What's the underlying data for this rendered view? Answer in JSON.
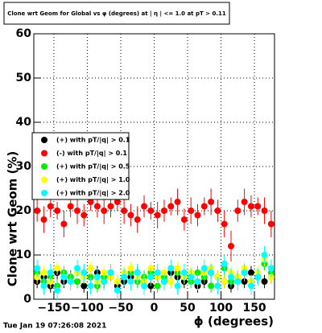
{
  "chart_data": {
    "type": "scatter",
    "title": "Clone wrt Geom for Global vs φ (degrees) at | η | <= 1.0 at pT > 0.11",
    "x_label": "ϕ (degrees)",
    "y_label": "Clone wrt Geom (%)",
    "timestamp": "Tue Jan 19 07:26:08 2021",
    "xlim": [
      -180,
      180
    ],
    "ylim": [
      0,
      60
    ],
    "xticks": [
      {
        "value": -150,
        "label": "−150"
      },
      {
        "value": -100,
        "label": "−100"
      },
      {
        "value": -50,
        "label": "−50"
      },
      0,
      50,
      100,
      150
    ],
    "yticks": [
      0,
      10,
      20,
      30,
      40,
      50,
      60
    ],
    "grid": true,
    "x": [
      -175,
      -165,
      -155,
      -145,
      -135,
      -125,
      -115,
      -105,
      -95,
      -85,
      -75,
      -65,
      -55,
      -45,
      -35,
      -25,
      -15,
      -5,
      5,
      15,
      25,
      35,
      45,
      55,
      65,
      75,
      85,
      95,
      105,
      115,
      125,
      135,
      145,
      155,
      165,
      175
    ],
    "series": [
      {
        "name": "(+) with pT/|q| > 0.1",
        "color": "#000000",
        "values": [
          4,
          5,
          3,
          6,
          4,
          5,
          4,
          3,
          5,
          6,
          4,
          5,
          3,
          4,
          5,
          6,
          4,
          3,
          5,
          4,
          6,
          5,
          4,
          5,
          3,
          4,
          6,
          5,
          4,
          3,
          5,
          4,
          6,
          5,
          4,
          5
        ],
        "errors": [
          1.5,
          1.5,
          1.5,
          1.5,
          1.5,
          1.5,
          1.5,
          1.5,
          1.5,
          1.5,
          1.5,
          1.5,
          1.5,
          1.5,
          1.5,
          1.5,
          1.5,
          1.5,
          1.5,
          1.5,
          1.5,
          1.5,
          1.5,
          1.5,
          1.5,
          1.5,
          1.5,
          1.5,
          1.5,
          1.5,
          1.5,
          1.5,
          1.5,
          1.5,
          1.5,
          1.5
        ]
      },
      {
        "name": "(-) with pT/|q| > 0.1",
        "color": "#ff0000",
        "values": [
          20,
          18,
          21,
          20,
          17,
          21,
          20,
          19,
          22,
          21,
          20,
          21,
          22,
          20,
          19,
          18,
          21,
          20,
          19,
          20,
          21,
          22,
          18,
          20,
          19,
          21,
          22,
          20,
          17,
          12,
          20,
          22,
          21,
          21,
          20,
          17
        ],
        "errors": [
          2.5,
          3,
          2.5,
          2,
          3,
          2.5,
          3,
          2.5,
          2,
          2.5,
          3,
          2.5,
          2,
          3,
          2.5,
          3,
          2.5,
          2,
          3,
          2.5,
          2,
          3,
          2.5,
          3,
          2.5,
          2,
          3,
          2.5,
          3,
          3.5,
          2.5,
          3,
          2.5,
          2,
          3,
          3
        ]
      },
      {
        "name": "(+) with pT/|q| > 0.5",
        "color": "#00ee00",
        "values": [
          6,
          4,
          5,
          3,
          6,
          5,
          4,
          6,
          5,
          3,
          5,
          6,
          4,
          5,
          6,
          4,
          5,
          6,
          3,
          5,
          4,
          6,
          5,
          4,
          6,
          5,
          3,
          5,
          7,
          4,
          5,
          6,
          4,
          5,
          8,
          6
        ],
        "errors": [
          1.5,
          1.5,
          1.5,
          1.5,
          1.5,
          1.5,
          1.5,
          1.5,
          1.5,
          1.5,
          1.5,
          1.5,
          1.5,
          1.5,
          1.5,
          1.5,
          1.5,
          1.5,
          1.5,
          1.5,
          1.5,
          1.5,
          1.5,
          1.5,
          1.5,
          1.5,
          1.5,
          1.5,
          1.5,
          1.5,
          1.5,
          1.5,
          1.5,
          1.5,
          1.5,
          1.5
        ]
      },
      {
        "name": "(+) with pT/|q| > 1.0",
        "color": "#ffff00",
        "values": [
          5,
          6,
          4,
          7,
          5,
          4,
          6,
          5,
          7,
          4,
          6,
          5,
          4,
          6,
          7,
          5,
          4,
          7,
          5,
          6,
          4,
          7,
          5,
          6,
          4,
          6,
          7,
          5,
          4,
          6,
          5,
          7,
          4,
          6,
          9,
          5
        ],
        "errors": [
          1.5,
          1.5,
          1.5,
          1.5,
          1.5,
          1.5,
          1.5,
          1.5,
          1.5,
          1.5,
          1.5,
          1.5,
          1.5,
          1.5,
          1.5,
          1.5,
          1.5,
          1.5,
          1.5,
          1.5,
          1.5,
          1.5,
          1.5,
          1.5,
          1.5,
          1.5,
          1.5,
          1.5,
          1.5,
          1.5,
          1.5,
          1.5,
          1.5,
          1.5,
          1.5,
          1.5
        ]
      },
      {
        "name": "(+) with pT/|q| > 2.0",
        "color": "#00ffff",
        "values": [
          7,
          3,
          6,
          2,
          5,
          4,
          7,
          6,
          3,
          5,
          4,
          6,
          2,
          5,
          4,
          6,
          3,
          5,
          6,
          4,
          7,
          3,
          6,
          5,
          4,
          7,
          6,
          3,
          8,
          5,
          4,
          6,
          3,
          5,
          10,
          7
        ],
        "errors": [
          2,
          2,
          2,
          2,
          2,
          2,
          2,
          2,
          2,
          2,
          2,
          2,
          2,
          2,
          2,
          2,
          2,
          2,
          2,
          2,
          2,
          2,
          2,
          2,
          2,
          2,
          2,
          2,
          2,
          2,
          2,
          2,
          2,
          2,
          2,
          2
        ]
      }
    ]
  }
}
